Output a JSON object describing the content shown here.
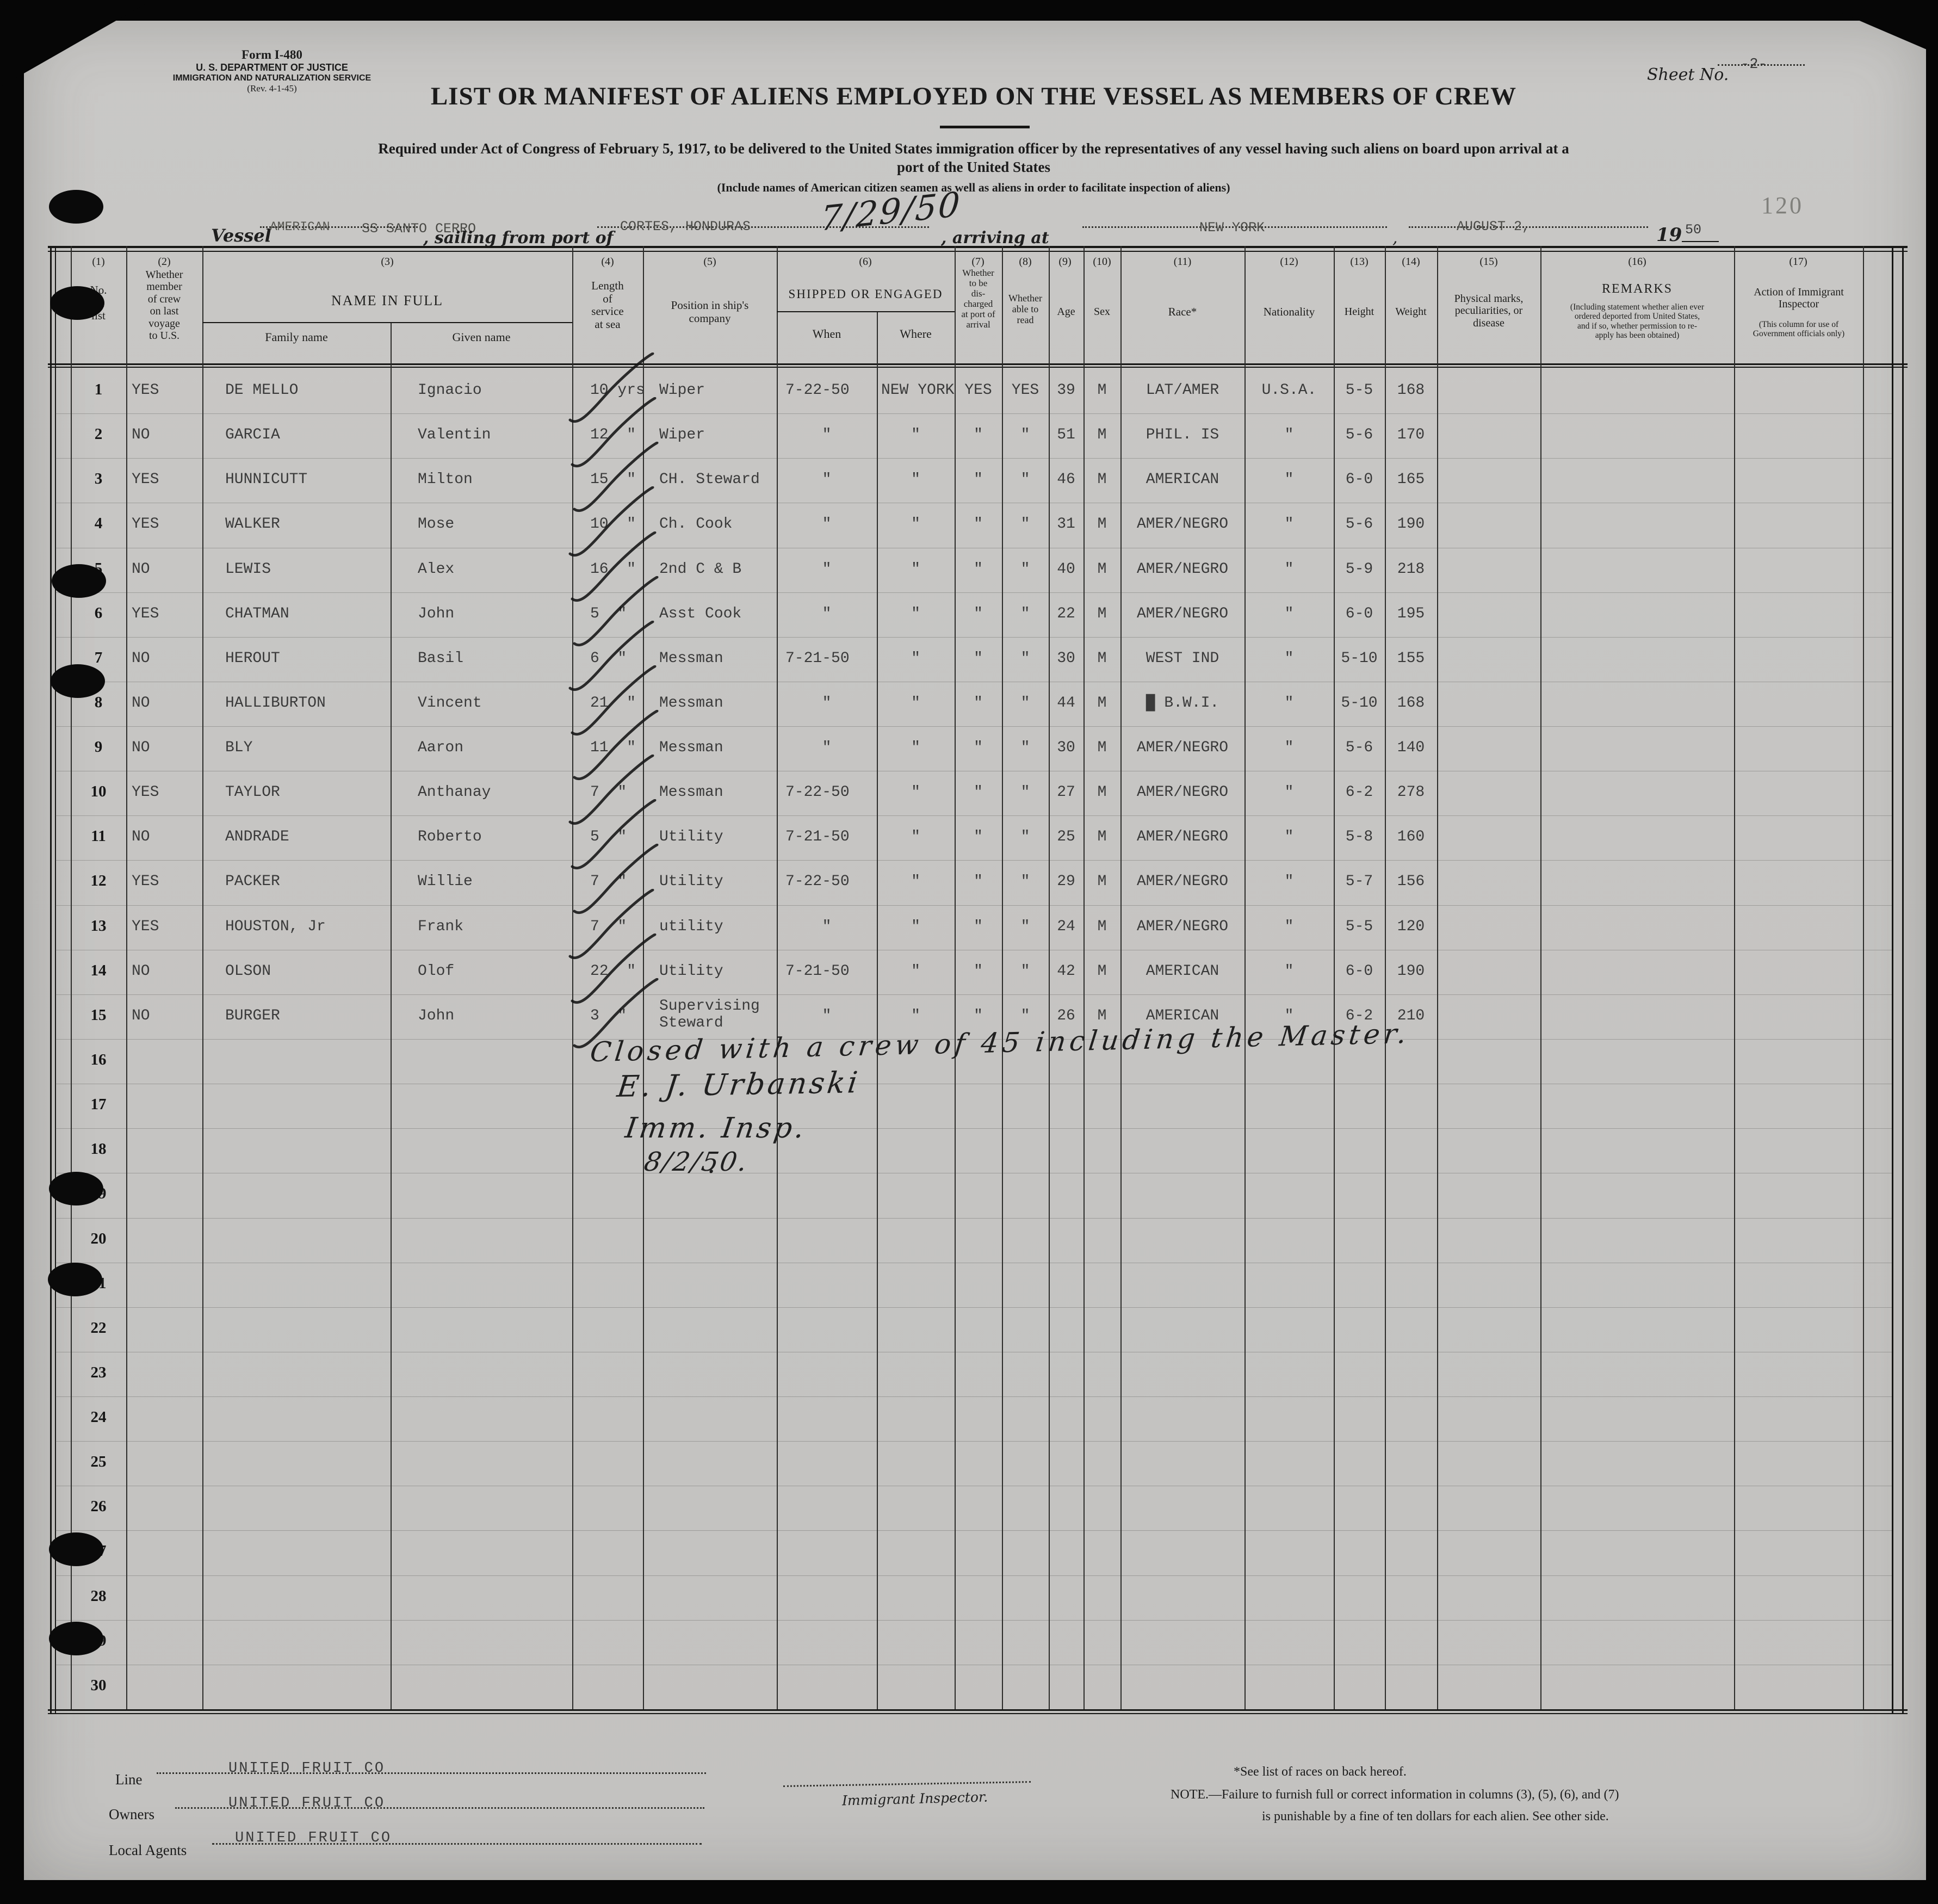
{
  "form": {
    "form_number": "Form I-480",
    "agency_line1": "U. S. DEPARTMENT OF JUSTICE",
    "agency_line2": "IMMIGRATION AND NATURALIZATION SERVICE",
    "revision": "(Rev. 4-1-45)",
    "sheet_label": "Sheet No.",
    "sheet_value": "-2-",
    "page_stamp": "120",
    "title": "LIST OR MANIFEST OF ALIENS EMPLOYED ON THE VESSEL AS MEMBERS OF CREW",
    "subtitle_line1": "Required under Act of Congress of February 5, 1917, to be delivered to the United States immigration officer by the representatives of any vessel having such aliens on board upon arrival at a",
    "subtitle_line2": "port of the United States",
    "subtitle_note": "(Include names of American citizen seamen as well as aliens in order to facilitate inspection of aliens)"
  },
  "vessel_line": {
    "vessel_label": "Vessel",
    "vessel_prefix": "AMERICAN",
    "vessel_name": "SS SANTO CERRO",
    "sailing_label": ", sailing from port of",
    "port": "CORTES, HONDURAS",
    "port_date_handwritten": "7/29/50",
    "arriving_label": ", arriving at",
    "arrival_port": "NEW YORK",
    "arrival_date": "AUGUST 2,",
    "year_label": "19",
    "year_value": "50"
  },
  "table": {
    "col_numbers": [
      "(1)",
      "(2)",
      "(3)",
      "(4)",
      "(5)",
      "(6)",
      "(7)",
      "(8)",
      "(9)",
      "(10)",
      "(11)",
      "(12)",
      "(13)",
      "(14)",
      "(15)",
      "(16)",
      "(17)"
    ],
    "headers": {
      "c1": "No.\non\nlist",
      "c2": "Whether\nmember\nof crew\non last\nvoyage\nto U.S.",
      "c3": "NAME IN FULL",
      "c3a": "Family name",
      "c3b": "Given name",
      "c4": "Length\nof\nservice\nat sea",
      "c5": "Position in ship's\ncompany",
      "c6": "SHIPPED OR ENGAGED",
      "c6a": "When",
      "c6b": "Where",
      "c7": "Whether\nto be\ndis-\ncharged\nat port of\narrival",
      "c8": "Whether\nable to\nread",
      "c9": "Age",
      "c10": "Sex",
      "c11": "Race*",
      "c12": "Nationality",
      "c13": "Height",
      "c14": "Weight",
      "c15": "Physical marks,\npeculiarities, or\ndisease",
      "c16": "REMARKS",
      "c16_note": "(Including statement whether alien ever\nordered deported from United States,\nand if so, whether permission to re-\napply has been obtained)",
      "c17": "Action of Immigrant\nInspector",
      "c17_note": "(This column for use of\nGovernment officials only)"
    },
    "rows": [
      {
        "no": "1",
        "member": "YES",
        "family": "DE MELLO",
        "given": "Ignacio",
        "service": "10 yrs",
        "position": "Wiper",
        "when": "7-22-50",
        "where": "NEW YORK",
        "discharged": "YES",
        "read": "YES",
        "age": "39",
        "sex": "M",
        "race": "LAT/AMER",
        "nationality": "U.S.A.",
        "height": "5-5",
        "weight": "168"
      },
      {
        "no": "2",
        "member": "NO",
        "family": "GARCIA",
        "given": "Valentin",
        "service": "12  \"",
        "position": "Wiper",
        "when": "\"",
        "where": "\"",
        "discharged": "\"",
        "read": "\"",
        "age": "51",
        "sex": "M",
        "race": "PHIL. IS",
        "nationality": "\"",
        "height": "5-6",
        "weight": "170"
      },
      {
        "no": "3",
        "member": "YES",
        "family": "HUNNICUTT",
        "given": "Milton",
        "service": "15  \"",
        "position": "CH. Steward",
        "when": "\"",
        "where": "\"",
        "discharged": "\"",
        "read": "\"",
        "age": "46",
        "sex": "M",
        "race": "AMERICAN",
        "nationality": "\"",
        "height": "6-0",
        "weight": "165"
      },
      {
        "no": "4",
        "member": "YES",
        "family": "WALKER",
        "given": "Mose",
        "service": "10  \"",
        "position": "Ch. Cook",
        "when": "\"",
        "where": "\"",
        "discharged": "\"",
        "read": "\"",
        "age": "31",
        "sex": "M",
        "race": "AMER/NEGRO",
        "nationality": "\"",
        "height": "5-6",
        "weight": "190"
      },
      {
        "no": "5",
        "member": "NO",
        "family": "LEWIS",
        "given": "Alex",
        "service": "16  \"",
        "position": "2nd C & B",
        "when": "\"",
        "where": "\"",
        "discharged": "\"",
        "read": "\"",
        "age": "40",
        "sex": "M",
        "race": "AMER/NEGRO",
        "nationality": "\"",
        "height": "5-9",
        "weight": "218"
      },
      {
        "no": "6",
        "member": "YES",
        "family": "CHATMAN",
        "given": "John",
        "service": "5  \"",
        "position": "Asst Cook",
        "when": "\"",
        "where": "\"",
        "discharged": "\"",
        "read": "\"",
        "age": "22",
        "sex": "M",
        "race": "AMER/NEGRO",
        "nationality": "\"",
        "height": "6-0",
        "weight": "195"
      },
      {
        "no": "7",
        "member": "NO",
        "family": "HEROUT",
        "given": "Basil",
        "service": "6  \"",
        "position": "Messman",
        "when": "7-21-50",
        "where": "\"",
        "discharged": "\"",
        "read": "\"",
        "age": "30",
        "sex": "M",
        "race": "WEST IND",
        "nationality": "\"",
        "height": "5-10",
        "weight": "155"
      },
      {
        "no": "8",
        "member": "NO",
        "family": "HALLIBURTON",
        "given": "Vincent",
        "service": "21  \"",
        "position": "Messman",
        "when": "\"",
        "where": "\"",
        "discharged": "\"",
        "read": "\"",
        "age": "44",
        "sex": "M",
        "race": "█ B.W.I.",
        "nationality": "\"",
        "height": "5-10",
        "weight": "168"
      },
      {
        "no": "9",
        "member": "NO",
        "family": "BLY",
        "given": "Aaron",
        "service": "11  \"",
        "position": "Messman",
        "when": "\"",
        "where": "\"",
        "discharged": "\"",
        "read": "\"",
        "age": "30",
        "sex": "M",
        "race": "AMER/NEGRO",
        "nationality": "\"",
        "height": "5-6",
        "weight": "140"
      },
      {
        "no": "10",
        "member": "YES",
        "family": "TAYLOR",
        "given": "Anthanay",
        "service": "7  \"",
        "position": "Messman",
        "when": "7-22-50",
        "where": "\"",
        "discharged": "\"",
        "read": "\"",
        "age": "27",
        "sex": "M",
        "race": "AMER/NEGRO",
        "nationality": "\"",
        "height": "6-2",
        "weight": "278"
      },
      {
        "no": "11",
        "member": "NO",
        "family": "ANDRADE",
        "given": "Roberto",
        "service": "5  \"",
        "position": "Utility",
        "when": "7-21-50",
        "where": "\"",
        "discharged": "\"",
        "read": "\"",
        "age": "25",
        "sex": "M",
        "race": "AMER/NEGRO",
        "nationality": "\"",
        "height": "5-8",
        "weight": "160"
      },
      {
        "no": "12",
        "member": "YES",
        "family": "PACKER",
        "given": "Willie",
        "service": "7  \"",
        "position": "Utility",
        "when": "7-22-50",
        "where": "\"",
        "discharged": "\"",
        "read": "\"",
        "age": "29",
        "sex": "M",
        "race": "AMER/NEGRO",
        "nationality": "\"",
        "height": "5-7",
        "weight": "156"
      },
      {
        "no": "13",
        "member": "YES",
        "family": "HOUSTON, Jr",
        "given": "Frank",
        "service": "7  \"",
        "position": "utility",
        "when": "\"",
        "where": "\"",
        "discharged": "\"",
        "read": "\"",
        "age": "24",
        "sex": "M",
        "race": "AMER/NEGRO",
        "nationality": "\"",
        "height": "5-5",
        "weight": "120"
      },
      {
        "no": "14",
        "member": "NO",
        "family": "OLSON",
        "given": "Olof",
        "service": "22  \"",
        "position": "Utility",
        "when": "7-21-50",
        "where": "\"",
        "discharged": "\"",
        "read": "\"",
        "age": "42",
        "sex": "M",
        "race": "AMERICAN",
        "nationality": "\"",
        "height": "6-0",
        "weight": "190"
      },
      {
        "no": "15",
        "member": "NO",
        "family": "BURGER",
        "given": "John",
        "service": "3  \"",
        "position": "Supervising\nSteward",
        "when": "\"",
        "where": "\"",
        "discharged": "\"",
        "read": "\"",
        "age": "26",
        "sex": "M",
        "race": "AMERICAN",
        "nationality": "\"",
        "height": "6-2",
        "weight": "210"
      }
    ],
    "empty_row_numbers": [
      "16",
      "17",
      "18",
      "19",
      "20",
      "21",
      "22",
      "23",
      "24",
      "25",
      "26",
      "27",
      "28",
      "29",
      "30"
    ]
  },
  "closing_note": {
    "line1": "Closed with a crew of 45 including the Master.",
    "line2": "E. J. Urbanski",
    "line3": "Imm. Insp.",
    "line4": "8/2/50.",
    "stray_mark": "."
  },
  "footer": {
    "line_label": "Line",
    "line_value": "UNITED FRUIT CO",
    "owners_label": "Owners",
    "owners_value": "UNITED FRUIT CO",
    "agents_label": "Local Agents",
    "agents_value": "UNITED FRUIT CO",
    "inspector_label": "Immigrant Inspector.",
    "races_note": "*See list of races on back hereof.",
    "note_line1": "NOTE.—Failure to furnish full or correct information in columns (3), (5), (6), and (7)",
    "note_line2": "is punishable by a fine of ten dollars for each alien.  See other side."
  },
  "colors": {
    "paper": "#c8c7c5",
    "ink": "#1b1b1b",
    "typed_ink": "#3a3a3a",
    "background": "#060606"
  }
}
